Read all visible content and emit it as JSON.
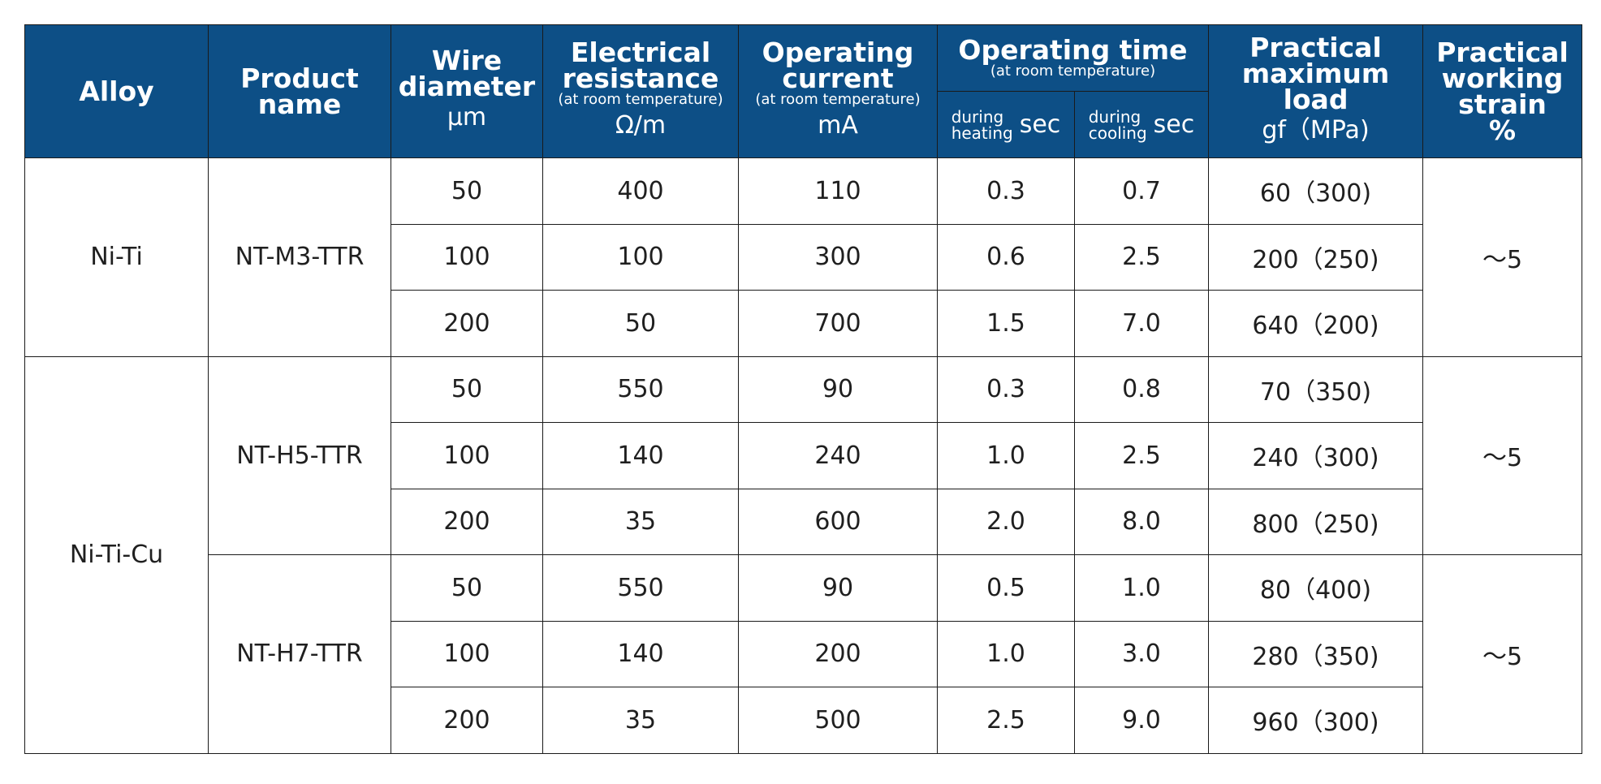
{
  "headers": {
    "alloy": "Alloy",
    "product_name_line1": "Product",
    "product_name_line2": "name",
    "wire_line1": "Wire",
    "wire_line2": "diameter",
    "wire_unit": "μm",
    "resistance_line1": "Electrical",
    "resistance_line2": "resistance",
    "resistance_note": "(at room temperature)",
    "resistance_unit": "Ω/m",
    "current_line1": "Operating",
    "current_line2": "current",
    "current_note": "(at room temperature)",
    "current_unit": "mA",
    "time_title": "Operating time",
    "time_note": "(at room temperature)",
    "heating_line1": "during",
    "heating_line2": "heating",
    "heating_unit": "sec",
    "cooling_line1": "during",
    "cooling_line2": "cooling",
    "cooling_unit": "sec",
    "load_line1": "Practical",
    "load_line2": "maximum load",
    "load_unit": "gf（MPa)",
    "strain_line1": "Practical",
    "strain_line2": "working",
    "strain_line3": "strain",
    "strain_unit": "%"
  },
  "groups": {
    "alloy_niti": "Ni-Ti",
    "alloy_niticu": "Ni-Ti-Cu",
    "product_m3": "NT-M3-TTR",
    "product_h5": "NT-H5-TTR",
    "product_h7": "NT-H7-TTR",
    "strain_m3": "～5",
    "strain_h5": "～5",
    "strain_h7": "～5"
  },
  "rows": [
    {
      "diameter": "50",
      "resistance": "400",
      "current": "110",
      "heating": "0.3",
      "cooling": "0.7",
      "load": "60（300)"
    },
    {
      "diameter": "100",
      "resistance": "100",
      "current": "300",
      "heating": "0.6",
      "cooling": "2.5",
      "load": "200（250)"
    },
    {
      "diameter": "200",
      "resistance": "50",
      "current": "700",
      "heating": "1.5",
      "cooling": "7.0",
      "load": "640（200)"
    },
    {
      "diameter": "50",
      "resistance": "550",
      "current": "90",
      "heating": "0.3",
      "cooling": "0.8",
      "load": "70（350)"
    },
    {
      "diameter": "100",
      "resistance": "140",
      "current": "240",
      "heating": "1.0",
      "cooling": "2.5",
      "load": "240（300)"
    },
    {
      "diameter": "200",
      "resistance": "35",
      "current": "600",
      "heating": "2.0",
      "cooling": "8.0",
      "load": "800（250)"
    },
    {
      "diameter": "50",
      "resistance": "550",
      "current": "90",
      "heating": "0.5",
      "cooling": "1.0",
      "load": "80（400)"
    },
    {
      "diameter": "100",
      "resistance": "140",
      "current": "200",
      "heating": "1.0",
      "cooling": "3.0",
      "load": "280（350)"
    },
    {
      "diameter": "200",
      "resistance": "35",
      "current": "500",
      "heating": "2.5",
      "cooling": "9.0",
      "load": "960（300)"
    }
  ],
  "colors": {
    "header_bg": "#0d4f86",
    "header_text": "#ffffff",
    "border": "#1a1a1a"
  }
}
